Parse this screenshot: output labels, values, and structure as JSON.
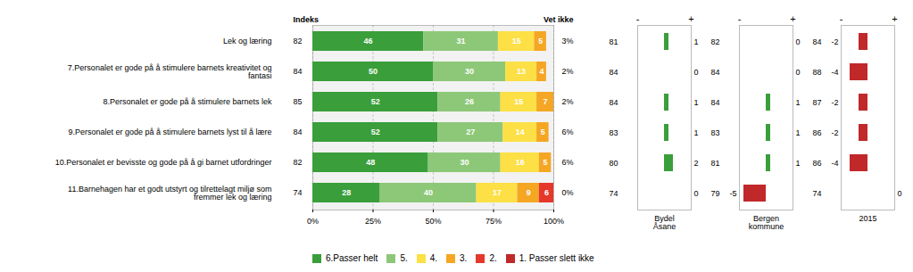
{
  "chart_data": [
    {
      "type": "bar",
      "orientation": "horizontal",
      "stacked": true,
      "categories": [
        "Lek og læring",
        "7.Personalet er gode på å stimulere barnets kreativitet og\nfantasi",
        "8.Personalet er gode på å stimulere barnets lek",
        "9.Personalet er gode på å stimulere barnets lyst til å lære",
        "10.Personalet er bevisste og gode på å gi barnet utfordringer",
        "11.Barnehagen har et godt utstyrt og tilrettelagt miljø som\nfremmer lek og læring"
      ],
      "series": [
        {
          "name": "6.Passer helt",
          "color": "#3a9e3a",
          "values": [
            46,
            50,
            52,
            52,
            48,
            28
          ]
        },
        {
          "name": "5.",
          "color": "#8dc878",
          "values": [
            31,
            30,
            26,
            27,
            30,
            40
          ]
        },
        {
          "name": "4.",
          "color": "#fce045",
          "values": [
            15,
            13,
            15,
            14,
            16,
            17
          ]
        },
        {
          "name": "3.",
          "color": "#f5a623",
          "values": [
            5,
            4,
            7,
            5,
            5,
            9
          ]
        },
        {
          "name": "2.",
          "color": "#e5382b",
          "values": [
            0,
            0,
            0,
            0,
            0,
            6
          ]
        },
        {
          "name": "1. Passer slett ikke",
          "color": "#c0282a",
          "values": [
            null,
            null,
            null,
            null,
            null,
            null
          ]
        }
      ],
      "xlim": [
        0,
        100
      ],
      "xticks": [
        {
          "value": 0,
          "label": "0%"
        },
        {
          "value": 25,
          "label": "25%"
        },
        {
          "value": 50,
          "label": "50%"
        },
        {
          "value": 75,
          "label": "75%"
        },
        {
          "value": 100,
          "label": "100%"
        }
      ],
      "grid": true,
      "data_labels": true,
      "legend": "bottom",
      "columns": [
        {
          "title": "Indeks",
          "values": [
            82,
            84,
            85,
            84,
            82,
            74
          ]
        },
        {
          "title": "Vet ikke",
          "values": [
            3,
            2,
            2,
            6,
            6,
            0
          ],
          "value_labels": [
            "3%",
            "2%",
            "2%",
            "6%",
            "6%",
            "0%"
          ]
        }
      ]
    },
    {
      "type": "bar",
      "orientation": "horizontal",
      "title": "Bydel\nÅsane",
      "categories": [
        "Lek og læring",
        "7.Personalet er gode på å stimulere barnets kreativitet og\nfantasi",
        "8.Personalet er gode på å stimulere barnets lek",
        "9.Personalet er gode på å stimulere barnets lyst til å lære",
        "10.Personalet er bevisste og gode på å gi barnet utfordringer",
        "11.Barnehagen har et godt utstyrt og tilrettelagt miljø som\nfremmer lek og læring"
      ],
      "values": [
        1,
        0,
        1,
        1,
        2,
        0
      ],
      "colors": [
        "#3a9e3a",
        "#3a9e3a",
        "#3a9e3a",
        "#3a9e3a",
        "#3a9e3a",
        "#3a9e3a"
      ],
      "indeks": [
        81,
        84,
        84,
        83,
        80,
        74
      ],
      "xlim": [
        -6,
        6
      ],
      "xticks": [
        {
          "value": -6,
          "label": "-"
        },
        {
          "value": 6,
          "label": "+"
        }
      ],
      "data_labels": true,
      "tick_labels": "x"
    },
    {
      "type": "bar",
      "orientation": "horizontal",
      "title": "Bergen\nkommune",
      "categories": [
        "Lek og læring",
        "7.Personalet er gode på å stimulere barnets kreativitet og\nfantasi",
        "8.Personalet er gode på å stimulere barnets lek",
        "9.Personalet er gode på å stimulere barnets lyst til å lære",
        "10.Personalet er bevisste og gode på å gi barnet utfordringer",
        "11.Barnehagen har et godt utstyrt og tilrettelagt miljø som\nfremmer lek og læring"
      ],
      "values": [
        0,
        0,
        1,
        1,
        1,
        -5
      ],
      "colors": [
        "#3a9e3a",
        "#3a9e3a",
        "#3a9e3a",
        "#3a9e3a",
        "#3a9e3a",
        "#c0282a"
      ],
      "indeks": [
        82,
        84,
        84,
        83,
        81,
        79
      ],
      "xlim": [
        -6,
        6
      ],
      "xticks": [
        {
          "value": -6,
          "label": "-"
        },
        {
          "value": 6,
          "label": "+"
        }
      ],
      "data_labels": true,
      "tick_labels": "x"
    },
    {
      "type": "bar",
      "orientation": "horizontal",
      "title": "2015",
      "categories": [
        "Lek og læring",
        "7.Personalet er gode på å stimulere barnets kreativitet og\nfantasi",
        "8.Personalet er gode på å stimulere barnets lek",
        "9.Personalet er gode på å stimulere barnets lyst til å lære",
        "10.Personalet er bevisste og gode på å gi barnet utfordringer",
        "11.Barnehagen har et godt utstyrt og tilrettelagt miljø som\nfremmer lek og læring"
      ],
      "values": [
        -2,
        -4,
        -2,
        -2,
        -4,
        0
      ],
      "colors": [
        "#c0282a",
        "#c0282a",
        "#c0282a",
        "#c0282a",
        "#c0282a",
        "#3a9e3a"
      ],
      "indeks": [
        84,
        88,
        87,
        86,
        86,
        74
      ],
      "xlim": [
        -6,
        6
      ],
      "xticks": [
        {
          "value": -6,
          "label": "-"
        },
        {
          "value": 6,
          "label": "+"
        }
      ],
      "data_labels": true,
      "tick_labels": "x"
    }
  ]
}
